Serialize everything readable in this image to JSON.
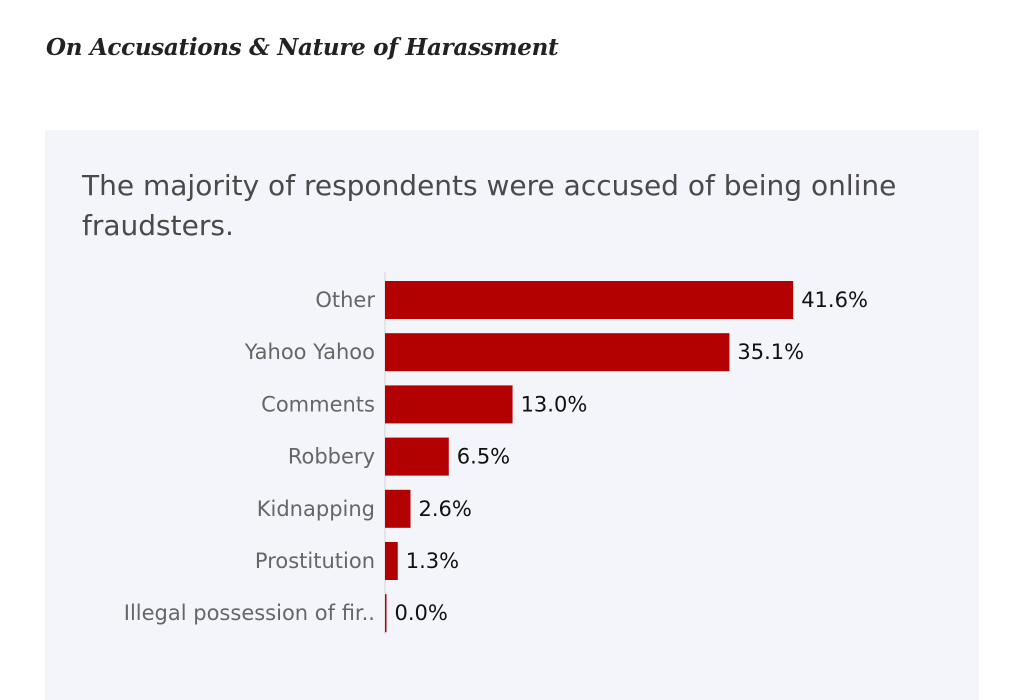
{
  "heading": "On Accusations & Nature of Harassment",
  "chart_data": {
    "type": "bar",
    "orientation": "horizontal",
    "title": "The majority of respondents were accused of being online fraudsters.",
    "categories": [
      "Other",
      "Yahoo Yahoo",
      "Comments",
      "Robbery",
      "Kidnapping",
      "Prostitution",
      "Illegal possession of fir.."
    ],
    "values": [
      41.6,
      35.1,
      13.0,
      6.5,
      2.6,
      1.3,
      0.0
    ],
    "data_labels": [
      "41.6%",
      "35.1%",
      "13.0%",
      "6.5%",
      "2.6%",
      "1.3%",
      "0.0%"
    ],
    "unit": "%",
    "xlim": [
      0,
      48
    ],
    "grid": false,
    "bar_color": "#b30000",
    "background": "#f4f5fb"
  }
}
